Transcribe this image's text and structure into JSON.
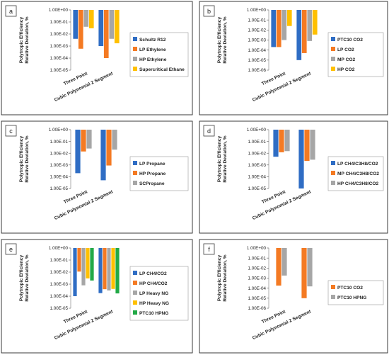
{
  "colors": {
    "blue": "#2F6DC4",
    "orange": "#F47A23",
    "gray": "#A6A6A6",
    "yellow": "#FFC000",
    "green": "#22A946",
    "border": "#3a3a3a"
  },
  "chart_data": [
    {
      "panel": "a",
      "type": "bar",
      "yscale": "log",
      "ylim": [
        1e-05,
        1
      ],
      "ylabel": "Polytropic Efficiency\nRelative Deviation, %",
      "yticks": [
        "1.00E-05",
        "1.00E-04",
        "1.00E-03",
        "1.00E-02",
        "1.00E-01",
        "1.00E+00"
      ],
      "categories": [
        "Three Point",
        "Cubic Polynomial 2 Segment"
      ],
      "legend": "right",
      "series": [
        {
          "name": "Schultz R12",
          "color": "blue",
          "values": [
            0.004,
            0.001
          ]
        },
        {
          "name": "LP Ethylene",
          "color": "orange",
          "values": [
            0.0006,
            0.0001
          ]
        },
        {
          "name": "HP Ethylene",
          "color": "gray",
          "values": [
            0.04,
            0.004
          ]
        },
        {
          "name": "Supercritical Ethane",
          "color": "yellow",
          "values": [
            0.03,
            0.0017
          ]
        }
      ]
    },
    {
      "panel": "b",
      "type": "bar",
      "yscale": "log",
      "ylim": [
        1e-06,
        1
      ],
      "ylabel": "Polytropic Efficiency\nRelative Deviation, %",
      "yticks": [
        "1.00E-06",
        "1.00E-05",
        "1.00E-04",
        "1.00E-03",
        "1.00E-02",
        "1.00E-01",
        "1.00E+00"
      ],
      "categories": [
        "Three Point",
        "Cubic Polynomial 2 Segment"
      ],
      "legend": "right",
      "series": [
        {
          "name": "PTC10 CO2",
          "color": "blue",
          "values": [
            0.0002,
            1e-05
          ]
        },
        {
          "name": "LP CO2",
          "color": "orange",
          "values": [
            0.0002,
            5e-05
          ]
        },
        {
          "name": "MP CO2",
          "color": "gray",
          "values": [
            0.001,
            0.0008
          ]
        },
        {
          "name": "HP CO2",
          "color": "yellow",
          "values": [
            0.025,
            0.0035
          ]
        }
      ]
    },
    {
      "panel": "c",
      "type": "bar",
      "yscale": "log",
      "ylim": [
        1e-05,
        1
      ],
      "ylabel": "Polytropic Efficiency\nRelative Deviation, %",
      "yticks": [
        "1.00E-05",
        "1.00E-04",
        "1.00E-03",
        "1.00E-02",
        "1.00E-01",
        "1.00E+00"
      ],
      "categories": [
        "Three Point",
        "Cubic Polynomial 2 Segment"
      ],
      "legend": "right",
      "series": [
        {
          "name": "LP Propane",
          "color": "blue",
          "values": [
            0.0002,
            5e-05
          ]
        },
        {
          "name": "HP Propane",
          "color": "orange",
          "values": [
            0.014,
            0.0009
          ]
        },
        {
          "name": "SCPropane",
          "color": "gray",
          "values": [
            0.025,
            0.02
          ]
        }
      ]
    },
    {
      "panel": "d",
      "type": "bar",
      "yscale": "log",
      "ylim": [
        1e-05,
        1
      ],
      "ylabel": "Polytropic Efficiency\nRelative Deviation, %",
      "yticks": [
        "1.00E-05",
        "1.00E-04",
        "1.00E-03",
        "1.00E-02",
        "1.00E-01",
        "1.00E+00"
      ],
      "categories": [
        "Three Point",
        "Cubic Polynomial 2 Segment"
      ],
      "legend": "right",
      "series": [
        {
          "name": "LP CH4/C3H8/CO2",
          "color": "blue",
          "values": [
            0.005,
            1e-05
          ]
        },
        {
          "name": "MP CH4/C3H8/CO2",
          "color": "orange",
          "values": [
            0.012,
            0.0022
          ]
        },
        {
          "name": "HP CH4/C3H8/CO2",
          "color": "gray",
          "values": [
            0.015,
            0.0028
          ]
        }
      ]
    },
    {
      "panel": "e",
      "type": "bar",
      "yscale": "log",
      "ylim": [
        1e-05,
        1
      ],
      "ylabel": "Polytropic Efficiency\nRelative Deviation, %",
      "yticks": [
        "1.00E-05",
        "1.00E-04",
        "1.00E-03",
        "1.00E-02",
        "1.00E-01",
        "1.00E+00"
      ],
      "categories": [
        "Three Point",
        "Cubic Polynomial 2 Segment"
      ],
      "legend": "right",
      "series": [
        {
          "name": "LP CH4/CO2",
          "color": "blue",
          "values": [
            0.0001,
            0.00018
          ]
        },
        {
          "name": "HP CH4/CO2",
          "color": "orange",
          "values": [
            0.011,
            0.00038
          ]
        },
        {
          "name": "LP Heavy NG",
          "color": "gray",
          "values": [
            0.0008,
            0.0003
          ]
        },
        {
          "name": "HP Heavy NG",
          "color": "yellow",
          "values": [
            0.003,
            0.0004
          ]
        },
        {
          "name": "PTC10 HPNG",
          "color": "green",
          "values": [
            0.002,
            0.00017
          ]
        }
      ]
    },
    {
      "panel": "f",
      "type": "bar",
      "yscale": "log",
      "ylim": [
        1e-06,
        1
      ],
      "ylabel": "Polytropic Efficiency\nRelative Deviation, %",
      "yticks": [
        "1.00E-06",
        "1.00E-05",
        "1.00E-04",
        "1.00E-03",
        "1.00E-02",
        "1.00E-01",
        "1.00E+00"
      ],
      "categories": [
        "Three Point",
        "Cubic Polynomial 2 Segment"
      ],
      "legend": "right",
      "series": [
        {
          "name": "PTC10 CO2",
          "color": "orange",
          "values": [
            0.00018,
            1e-05
          ]
        },
        {
          "name": "PTC10 HPNG",
          "color": "gray",
          "values": [
            0.0018,
            0.00015
          ]
        }
      ]
    }
  ]
}
